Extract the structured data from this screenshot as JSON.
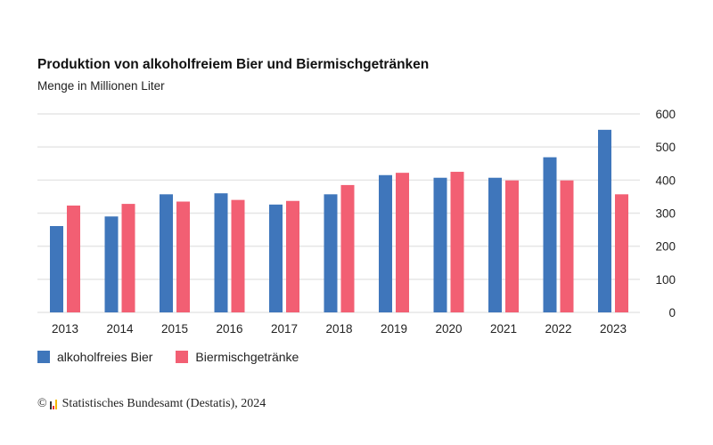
{
  "chart_data": {
    "type": "bar",
    "title": "Produktion von alkoholfreiem Bier und Biermischgetränken",
    "subtitle": "Menge in Millionen Liter",
    "categories": [
      "2013",
      "2014",
      "2015",
      "2016",
      "2017",
      "2018",
      "2019",
      "2020",
      "2021",
      "2022",
      "2023"
    ],
    "series": [
      {
        "name": "alkoholfreies Bier",
        "color": "#3f76bb",
        "values": [
          261,
          290,
          357,
          360,
          326,
          357,
          415,
          407,
          407,
          469,
          552
        ]
      },
      {
        "name": "Biermischgetränke",
        "color": "#f25f73",
        "values": [
          323,
          328,
          335,
          340,
          337,
          385,
          422,
          425,
          399,
          399,
          357
        ]
      }
    ],
    "ylim": [
      0,
      600
    ],
    "yticks": [
      0,
      100,
      200,
      300,
      400,
      500,
      600
    ],
    "y_axis_side": "right",
    "grid": true,
    "legend_placement": "bottom-left"
  },
  "source": "Statistisches Bundesamt (Destatis), 2024",
  "copyright_symbol": "©"
}
